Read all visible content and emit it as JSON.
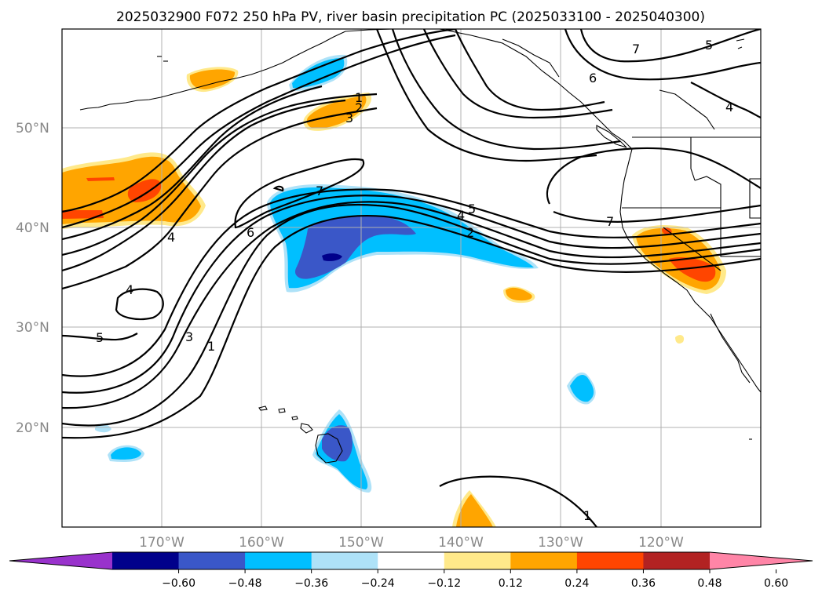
{
  "title": "2025032900 F072 250 hPa PV, river basin precipitation PC (2025033100 - 2025040300)",
  "lat_labels": [
    "50°N",
    "40°N",
    "30°N",
    "20°N"
  ],
  "lon_labels": [
    "170°W",
    "160°W",
    "150°W",
    "140°W",
    "130°W",
    "120°W"
  ],
  "colorbar": {
    "ticks": [
      "−0.60",
      "−0.48",
      "−0.36",
      "−0.24",
      "−0.12",
      "0.12",
      "0.24",
      "0.36",
      "0.48",
      "0.60"
    ],
    "colors": [
      "#9932cc",
      "#00008b",
      "#3a57c8",
      "#00bfff",
      "#aee2f8",
      "#ffffff",
      "#ffe98a",
      "#ffa500",
      "#ff4500",
      "#b22222",
      "#ff85a7"
    ]
  },
  "contour_labels": {
    "c1": "1",
    "c2": "2",
    "c3": "3",
    "c4": "4",
    "c5": "5",
    "c6": "6",
    "c7": "7"
  },
  "colors": {
    "orange": "#ffa500",
    "red_orange": "#ff4500",
    "light_yellow": "#ffe98a",
    "sky": "#00bfff",
    "light_blue": "#aee2f8",
    "royal": "#3a57c8",
    "navy": "#00008b"
  }
}
